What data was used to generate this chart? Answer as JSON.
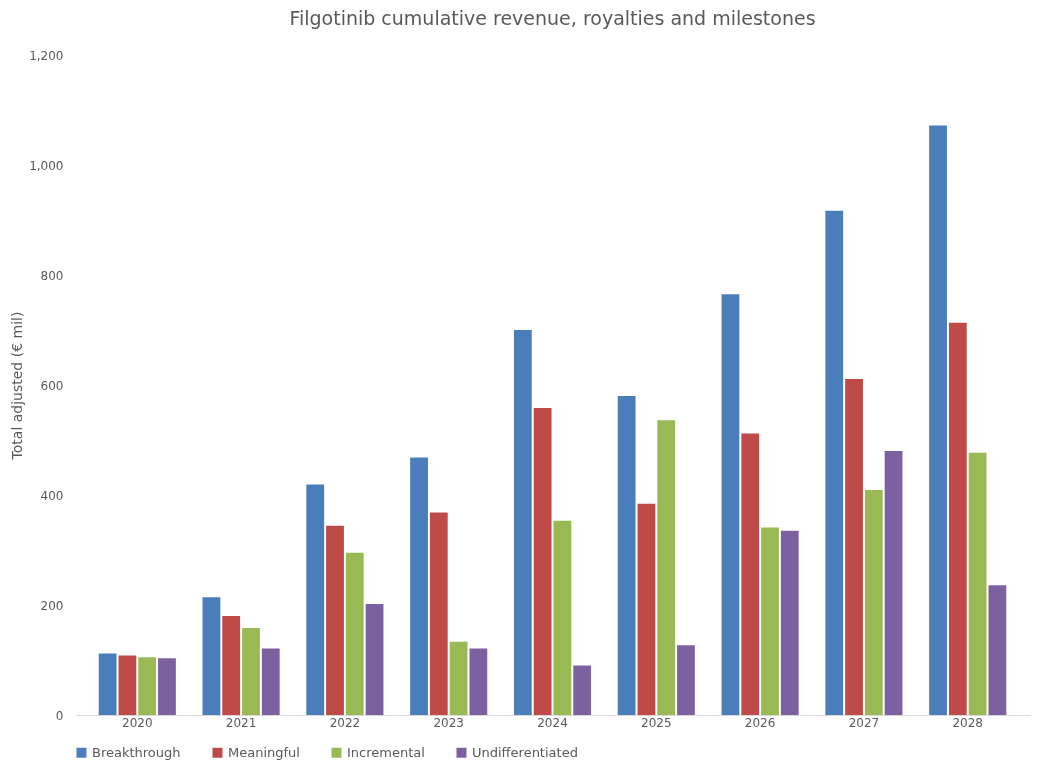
{
  "chart_data": {
    "type": "bar",
    "title": "Filgotinib cumulative revenue, royalties and milestones",
    "ylabel": "Total adjusted (€ mil)",
    "categories": [
      "2020",
      "2021",
      "2022",
      "2023",
      "2024",
      "2025",
      "2026",
      "2027",
      "2028"
    ],
    "series": [
      {
        "name": "Breakthrough",
        "color": "#4a7ebb",
        "values": [
          112,
          214,
          419,
          468,
          700,
          580,
          765,
          917,
          1072
        ]
      },
      {
        "name": "Meaningful",
        "color": "#be4b48",
        "values": [
          108,
          180,
          344,
          368,
          558,
          384,
          512,
          611,
          713
        ]
      },
      {
        "name": "Incremental",
        "color": "#98b954",
        "values": [
          105,
          158,
          295,
          133,
          353,
          536,
          341,
          409,
          477
        ]
      },
      {
        "name": "Undifferentiated",
        "color": "#7d60a0",
        "values": [
          103,
          121,
          202,
          121,
          90,
          127,
          335,
          480,
          236
        ]
      }
    ],
    "ylim": [
      0,
      1200
    ],
    "yticks": [
      0,
      200,
      400,
      600,
      800,
      {
        "value": 1000,
        "label": "1,000"
      },
      {
        "value": 1200,
        "label": "1,200"
      }
    ],
    "grid": false,
    "legend": "bottom"
  }
}
